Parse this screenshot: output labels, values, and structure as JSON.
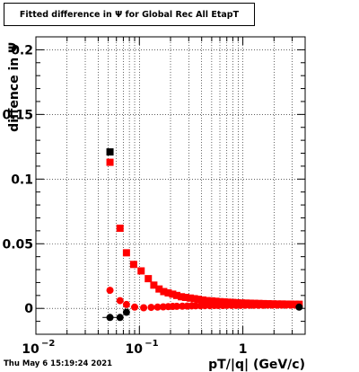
{
  "title": "Fitted difference in Ψ  for Global Rec All EtapT",
  "footer_date": "Thu May  6 15:19:24 2021",
  "chart_data": {
    "type": "scatter",
    "title": "Fitted difference in Ψ  for Global Rec All EtapT",
    "xlabel": "pT/|q| (GeV/c)",
    "ylabel": "diffence in Ψ",
    "x_scale": "log",
    "xlim": [
      0.01,
      4
    ],
    "ylim": [
      -0.02,
      0.21
    ],
    "grid": true,
    "x_ticks": [
      {
        "value": 0.01,
        "label": "10"
      },
      {
        "value": 0.1,
        "label": "10"
      },
      {
        "value": 1,
        "label": "1"
      }
    ],
    "x_tick_exponents": [
      "−2",
      "−1",
      ""
    ],
    "y_ticks": [
      {
        "value": 0,
        "label": "0"
      },
      {
        "value": 0.05,
        "label": "0.05"
      },
      {
        "value": 0.1,
        "label": "0.1"
      },
      {
        "value": 0.15,
        "label": "0.15"
      },
      {
        "value": 0.2,
        "label": "0.2"
      }
    ],
    "series": [
      {
        "marker": "square",
        "color": "#000000",
        "x": [
          0.052
        ],
        "y": [
          0.121
        ]
      },
      {
        "marker": "square",
        "color": "#ff0000",
        "x": [
          0.052,
          0.065,
          0.075,
          0.088,
          0.104,
          0.122,
          0.138,
          0.155,
          0.172,
          0.19,
          0.21,
          0.23,
          0.255,
          0.28,
          0.31,
          0.34,
          0.37,
          0.41,
          0.45,
          0.5,
          0.55,
          0.6,
          0.66,
          0.72,
          0.8,
          0.88,
          0.97,
          1.07,
          1.18,
          1.3,
          1.43,
          1.58,
          1.75,
          1.95,
          2.15,
          2.4,
          2.65,
          2.9,
          3.2,
          3.5
        ],
        "y": [
          0.113,
          0.062,
          0.043,
          0.034,
          0.029,
          0.023,
          0.018,
          0.015,
          0.013,
          0.012,
          0.011,
          0.01,
          0.009,
          0.0085,
          0.008,
          0.0075,
          0.007,
          0.0065,
          0.006,
          0.0058,
          0.0055,
          0.0052,
          0.005,
          0.0048,
          0.0046,
          0.0044,
          0.0042,
          0.0041,
          0.004,
          0.0039,
          0.0038,
          0.0037,
          0.0036,
          0.0035,
          0.0034,
          0.0034,
          0.0033,
          0.0033,
          0.0032,
          0.0032
        ]
      },
      {
        "marker": "circle",
        "color": "#ff0000",
        "x": [
          0.052,
          0.065,
          0.075,
          0.09,
          0.11,
          0.13,
          0.15,
          0.17,
          0.19,
          0.21,
          0.23,
          0.26,
          0.29,
          0.32,
          0.35,
          0.39,
          0.43,
          0.48,
          0.53,
          0.58,
          0.64,
          0.7,
          0.78,
          0.86,
          0.95,
          1.05,
          1.16,
          1.28,
          1.42,
          1.57,
          1.74,
          1.93,
          2.14,
          2.37,
          2.62,
          2.9,
          3.2,
          3.5
        ],
        "y": [
          0.014,
          0.006,
          0.003,
          0.001,
          0.0005,
          0.0008,
          0.001,
          0.0012,
          0.0014,
          0.0015,
          0.0016,
          0.0017,
          0.0018,
          0.0019,
          0.002,
          0.002,
          0.0021,
          0.0021,
          0.0022,
          0.0022,
          0.0022,
          0.0023,
          0.0023,
          0.0023,
          0.0023,
          0.0024,
          0.0024,
          0.0024,
          0.0024,
          0.0024,
          0.0025,
          0.0025,
          0.0025,
          0.0025,
          0.0025,
          0.0025,
          0.0025,
          0.0025
        ]
      },
      {
        "marker": "circle",
        "color": "#000000",
        "x": [
          0.052,
          0.065,
          0.075,
          3.5
        ],
        "y": [
          -0.007,
          -0.007,
          -0.003,
          0.001
        ],
        "xerr": [
          0.008,
          0,
          0,
          0
        ]
      }
    ]
  }
}
